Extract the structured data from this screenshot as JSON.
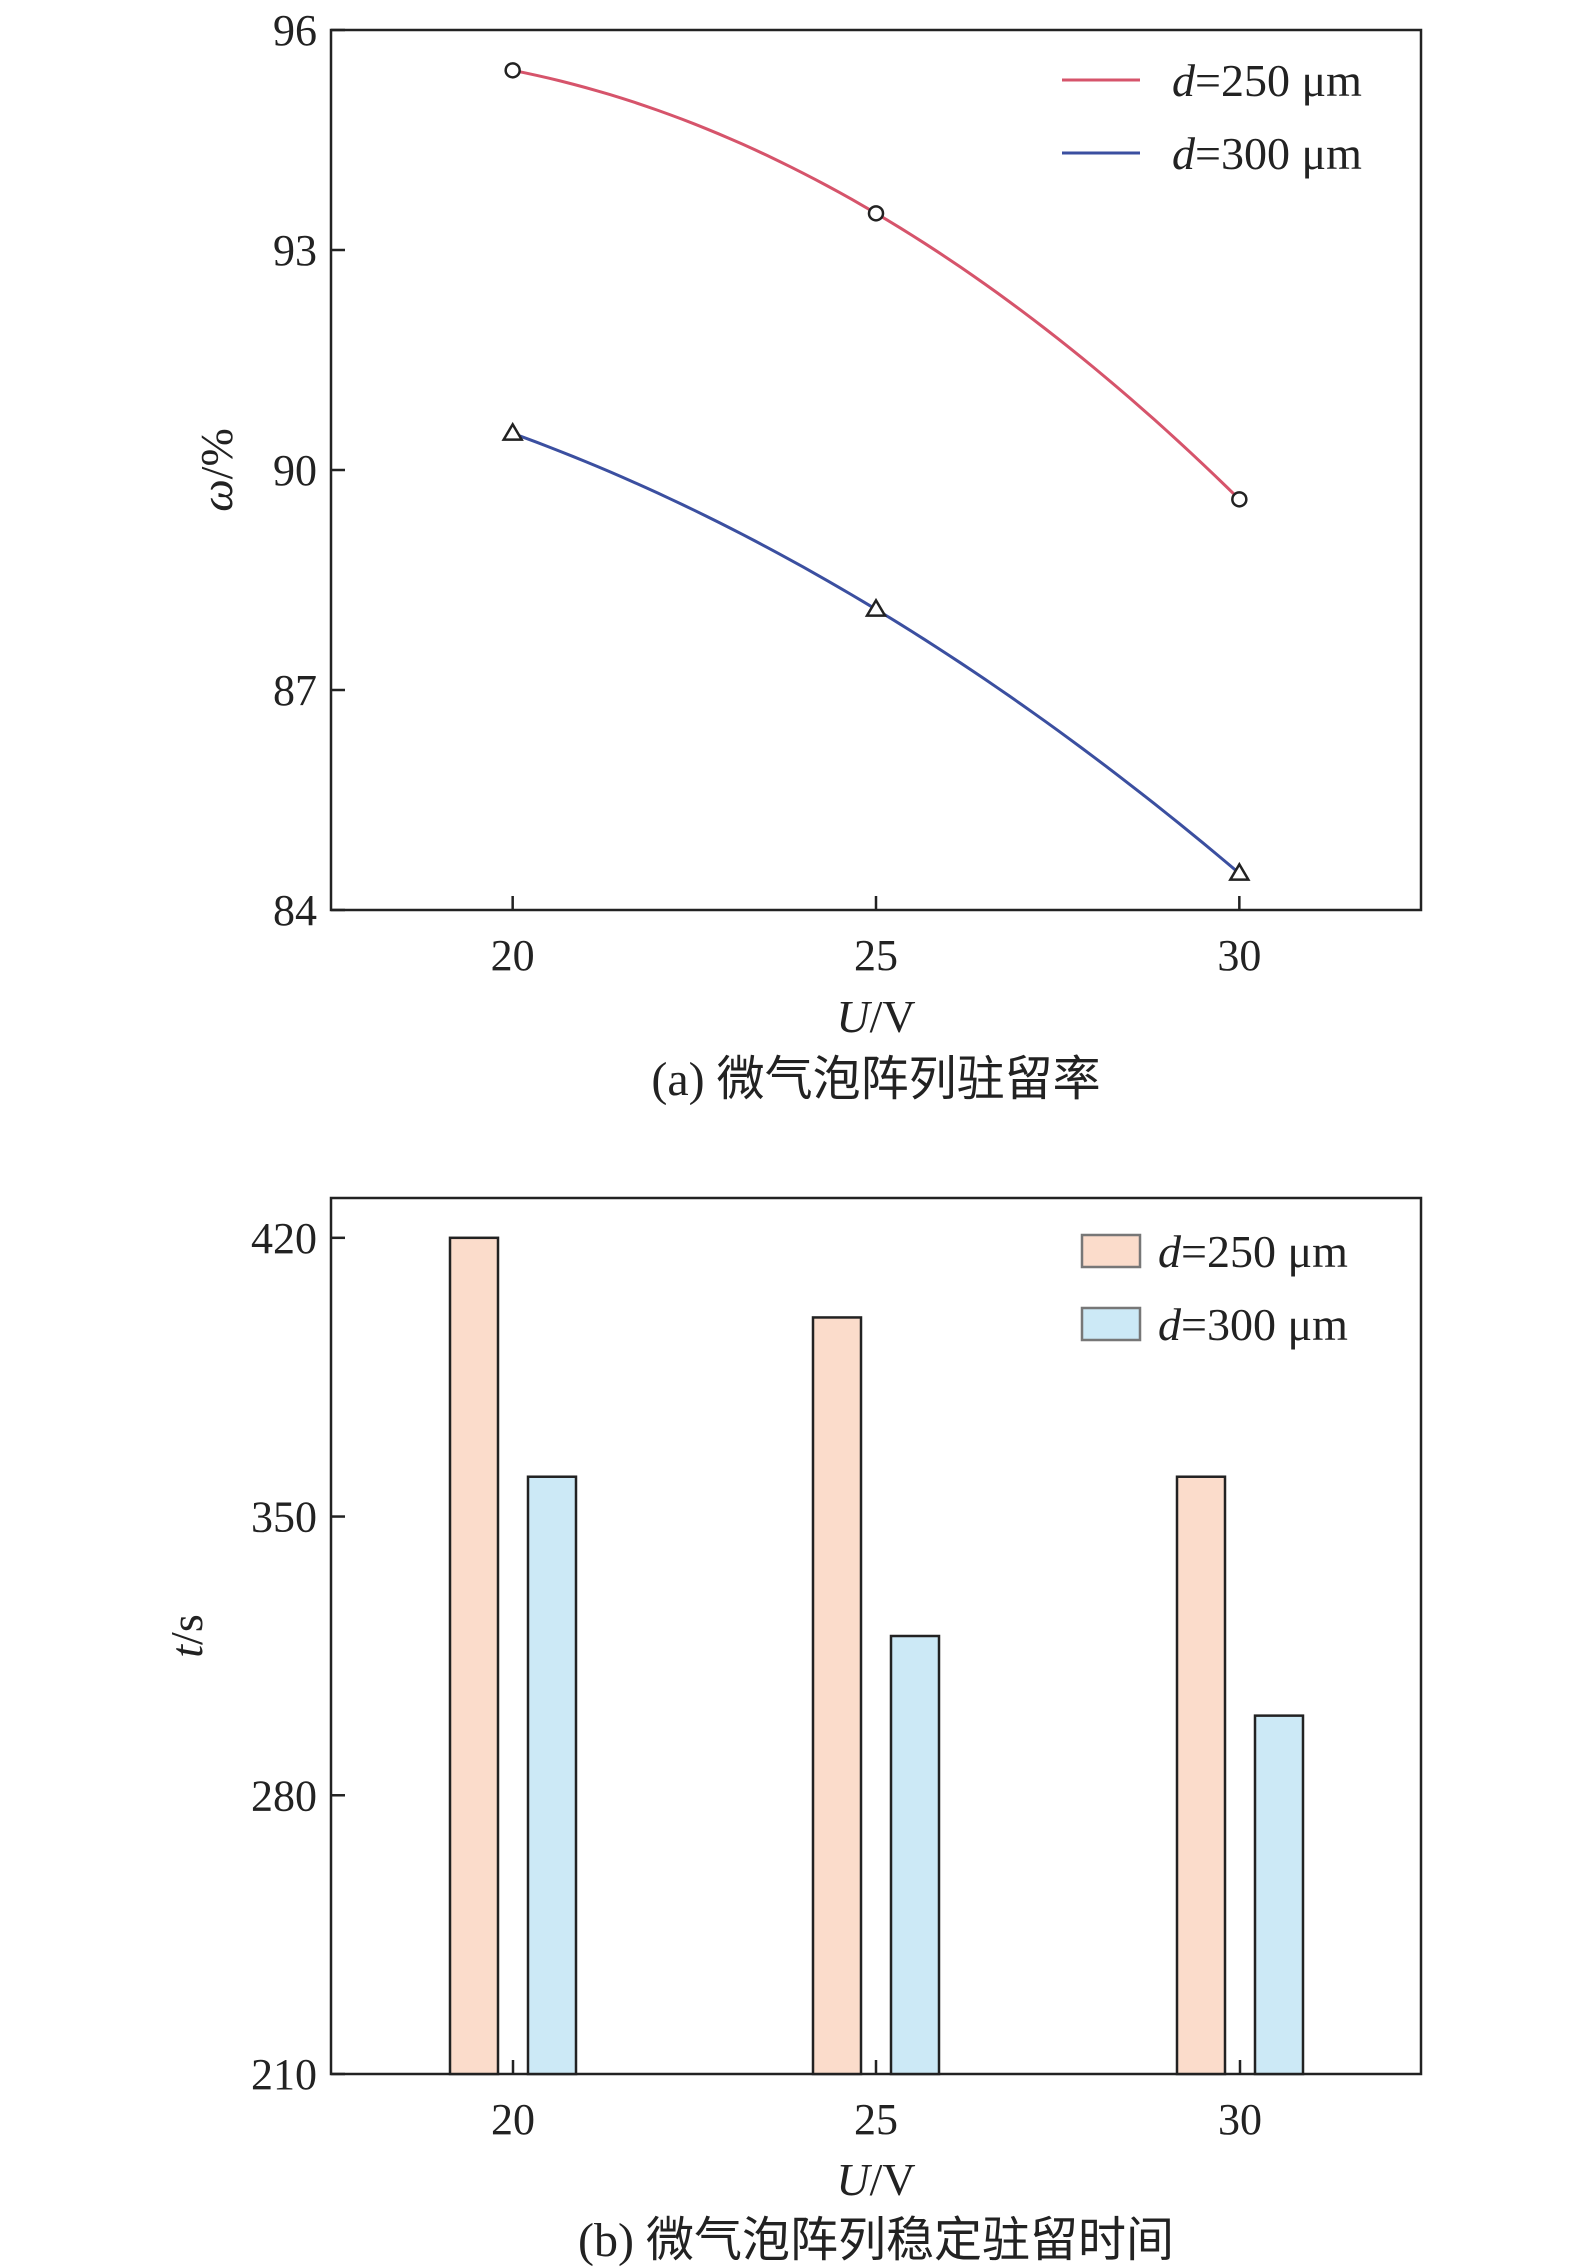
{
  "chart_data": [
    {
      "type": "line",
      "caption": "(a) 微气泡阵列驻留率",
      "xlabel_var": "U",
      "xlabel_unit": "/V",
      "ylabel_var": "ω",
      "ylabel_unit": "/%",
      "x": [
        20,
        25,
        30
      ],
      "xticks": [
        "20",
        "25",
        "30"
      ],
      "xlim": [
        17.5,
        32.5
      ],
      "ylim": [
        84,
        96
      ],
      "yticks": [
        "84",
        "87",
        "90",
        "93",
        "96"
      ],
      "legend_position": "top-right",
      "series": [
        {
          "name_var": "d",
          "name_rest": "=250 μm",
          "values": [
            95.45,
            93.5,
            89.6
          ],
          "color": "#d6546b",
          "marker": "circle"
        },
        {
          "name_var": "d",
          "name_rest": "=300 μm",
          "values": [
            90.5,
            88.1,
            84.5
          ],
          "color": "#3b4fa0",
          "marker": "triangle"
        }
      ]
    },
    {
      "type": "bar",
      "caption": "(b) 微气泡阵列稳定驻留时间",
      "xlabel_var": "U",
      "xlabel_unit": "/V",
      "ylabel_var": "t",
      "ylabel_unit": "/s",
      "categories": [
        "20",
        "25",
        "30"
      ],
      "ylim": [
        210,
        430
      ],
      "yticks": [
        "210",
        "280",
        "350",
        "420"
      ],
      "legend_position": "top-right",
      "series": [
        {
          "name_var": "d",
          "name_rest": "=250 μm",
          "values": [
            420,
            400,
            360
          ],
          "color": "#fbdccb"
        },
        {
          "name_var": "d",
          "name_rest": "=300 μm",
          "values": [
            360,
            320,
            300
          ],
          "color": "#cce9f6"
        }
      ]
    }
  ]
}
